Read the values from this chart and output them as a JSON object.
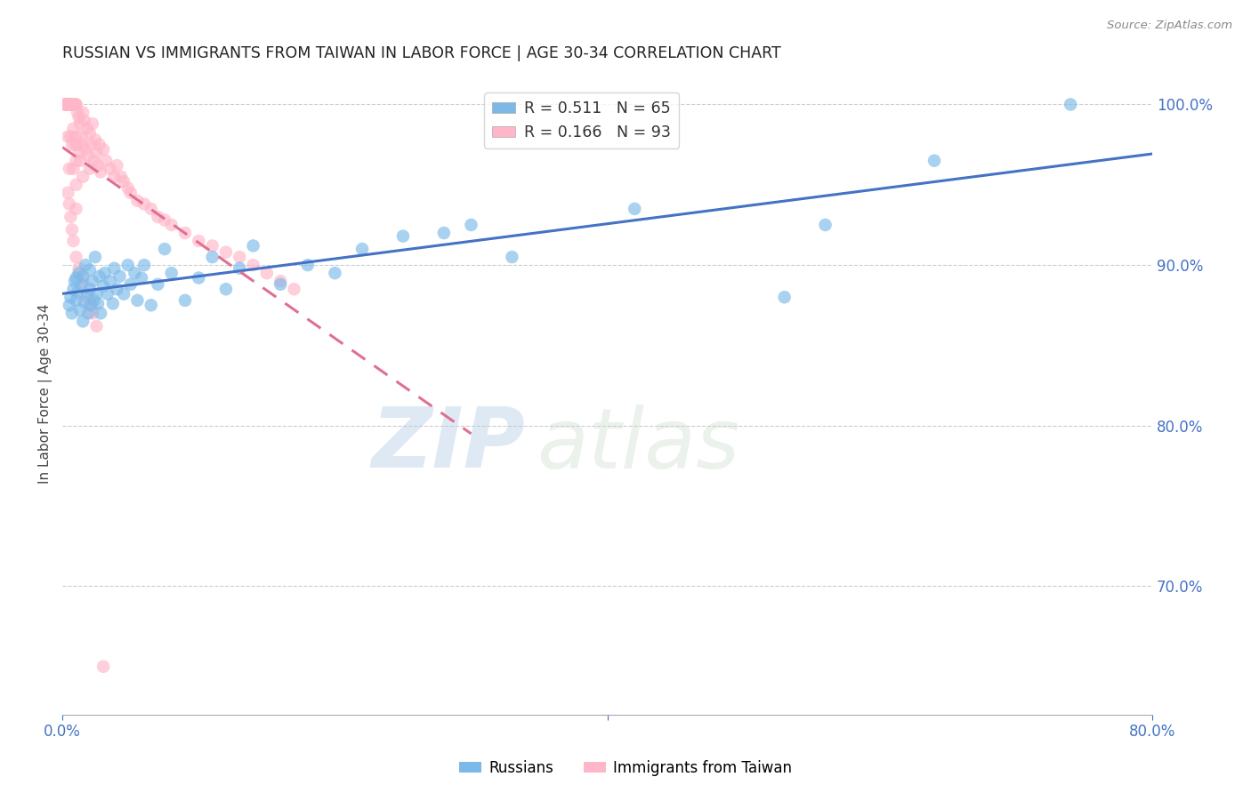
{
  "title": "RUSSIAN VS IMMIGRANTS FROM TAIWAN IN LABOR FORCE | AGE 30-34 CORRELATION CHART",
  "source": "Source: ZipAtlas.com",
  "ylabel": "In Labor Force | Age 30-34",
  "xlim": [
    0.0,
    0.8
  ],
  "ylim": [
    0.62,
    1.02
  ],
  "yticks": [
    0.7,
    0.8,
    0.9,
    1.0
  ],
  "yticklabels": [
    "70.0%",
    "80.0%",
    "90.0%",
    "100.0%"
  ],
  "legend_blue_text": "R = 0.511   N = 65",
  "legend_pink_text": "R = 0.166   N = 93",
  "watermark_zip": "ZIP",
  "watermark_atlas": "atlas",
  "blue_color": "#7cb9e8",
  "pink_color": "#ffb6c8",
  "blue_line_color": "#4472c4",
  "pink_line_color": "#e07090",
  "grid_color": "#cccccc",
  "russians_x": [
    0.005,
    0.006,
    0.007,
    0.008,
    0.009,
    0.01,
    0.01,
    0.011,
    0.012,
    0.013,
    0.014,
    0.015,
    0.015,
    0.016,
    0.017,
    0.018,
    0.019,
    0.02,
    0.02,
    0.021,
    0.022,
    0.023,
    0.024,
    0.025,
    0.026,
    0.027,
    0.028,
    0.03,
    0.031,
    0.033,
    0.035,
    0.037,
    0.038,
    0.04,
    0.042,
    0.045,
    0.048,
    0.05,
    0.053,
    0.055,
    0.058,
    0.06,
    0.065,
    0.07,
    0.075,
    0.08,
    0.09,
    0.1,
    0.11,
    0.12,
    0.13,
    0.14,
    0.16,
    0.18,
    0.2,
    0.22,
    0.25,
    0.28,
    0.3,
    0.33,
    0.42,
    0.53,
    0.56,
    0.64,
    0.74
  ],
  "russians_y": [
    0.875,
    0.88,
    0.87,
    0.885,
    0.89,
    0.878,
    0.892,
    0.883,
    0.895,
    0.872,
    0.888,
    0.865,
    0.893,
    0.877,
    0.9,
    0.882,
    0.87,
    0.885,
    0.897,
    0.875,
    0.89,
    0.878,
    0.905,
    0.882,
    0.876,
    0.893,
    0.87,
    0.887,
    0.895,
    0.882,
    0.89,
    0.876,
    0.898,
    0.885,
    0.893,
    0.882,
    0.9,
    0.888,
    0.895,
    0.878,
    0.892,
    0.9,
    0.875,
    0.888,
    0.91,
    0.895,
    0.878,
    0.892,
    0.905,
    0.885,
    0.898,
    0.912,
    0.888,
    0.9,
    0.895,
    0.91,
    0.918,
    0.92,
    0.925,
    0.905,
    0.935,
    0.88,
    0.925,
    0.965,
    1.0
  ],
  "taiwan_x": [
    0.002,
    0.002,
    0.003,
    0.003,
    0.003,
    0.004,
    0.004,
    0.004,
    0.004,
    0.005,
    0.005,
    0.005,
    0.005,
    0.005,
    0.005,
    0.005,
    0.005,
    0.006,
    0.006,
    0.007,
    0.007,
    0.008,
    0.008,
    0.008,
    0.009,
    0.009,
    0.01,
    0.01,
    0.01,
    0.01,
    0.01,
    0.01,
    0.011,
    0.011,
    0.012,
    0.012,
    0.013,
    0.013,
    0.014,
    0.015,
    0.015,
    0.015,
    0.016,
    0.017,
    0.018,
    0.019,
    0.02,
    0.02,
    0.021,
    0.022,
    0.023,
    0.024,
    0.025,
    0.026,
    0.027,
    0.028,
    0.03,
    0.032,
    0.035,
    0.038,
    0.04,
    0.043,
    0.045,
    0.048,
    0.05,
    0.055,
    0.06,
    0.065,
    0.07,
    0.075,
    0.08,
    0.09,
    0.1,
    0.11,
    0.12,
    0.13,
    0.14,
    0.15,
    0.16,
    0.17,
    0.004,
    0.005,
    0.006,
    0.007,
    0.008,
    0.01,
    0.012,
    0.015,
    0.018,
    0.02,
    0.022,
    0.025,
    0.03
  ],
  "taiwan_y": [
    1.0,
    1.0,
    1.0,
    1.0,
    1.0,
    1.0,
    1.0,
    1.0,
    0.98,
    1.0,
    1.0,
    1.0,
    1.0,
    1.0,
    1.0,
    1.0,
    0.96,
    1.0,
    0.98,
    1.0,
    0.975,
    1.0,
    0.985,
    0.96,
    1.0,
    0.975,
    1.0,
    1.0,
    0.98,
    0.965,
    0.95,
    0.935,
    0.995,
    0.975,
    0.992,
    0.97,
    0.988,
    0.965,
    0.98,
    0.995,
    0.975,
    0.955,
    0.99,
    0.972,
    0.985,
    0.968,
    0.982,
    0.96,
    0.975,
    0.988,
    0.965,
    0.978,
    0.97,
    0.962,
    0.975,
    0.958,
    0.972,
    0.965,
    0.96,
    0.955,
    0.962,
    0.955,
    0.952,
    0.948,
    0.945,
    0.94,
    0.938,
    0.935,
    0.93,
    0.928,
    0.925,
    0.92,
    0.915,
    0.912,
    0.908,
    0.905,
    0.9,
    0.895,
    0.89,
    0.885,
    0.945,
    0.938,
    0.93,
    0.922,
    0.915,
    0.905,
    0.898,
    0.89,
    0.88,
    0.875,
    0.87,
    0.862,
    0.65
  ]
}
